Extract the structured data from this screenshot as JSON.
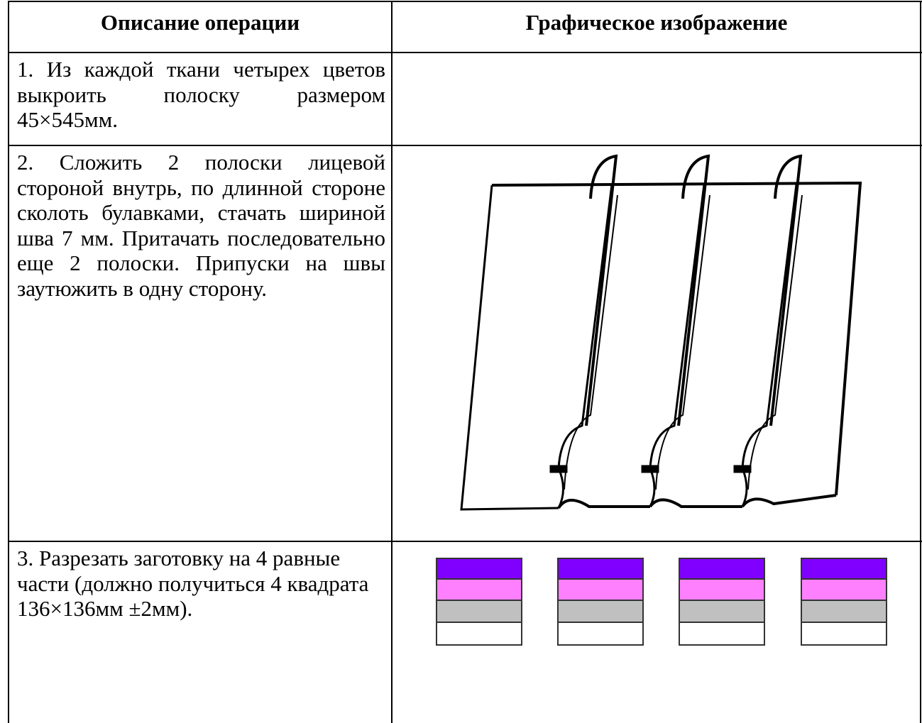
{
  "table": {
    "header": [
      "Описание операции",
      "Графическое изображение"
    ],
    "rows": [
      [
        "1. Из каждой ткани четырех цветов выкроить полоску размером 45×545мм."
      ],
      [
        "2. Сложить 2 полоски лицевой стороной внутрь, по длинной стороне сколоть булавками, стачать шириной шва 7 мм. Притачать последовательно еще 2 полоски. Припуски на швы заутюжить в одну сторону."
      ],
      [
        "3. Разрезать заготовку на 4 равные части (должно получиться 4 квадрата 136×136мм ±2мм)."
      ]
    ]
  }
}
